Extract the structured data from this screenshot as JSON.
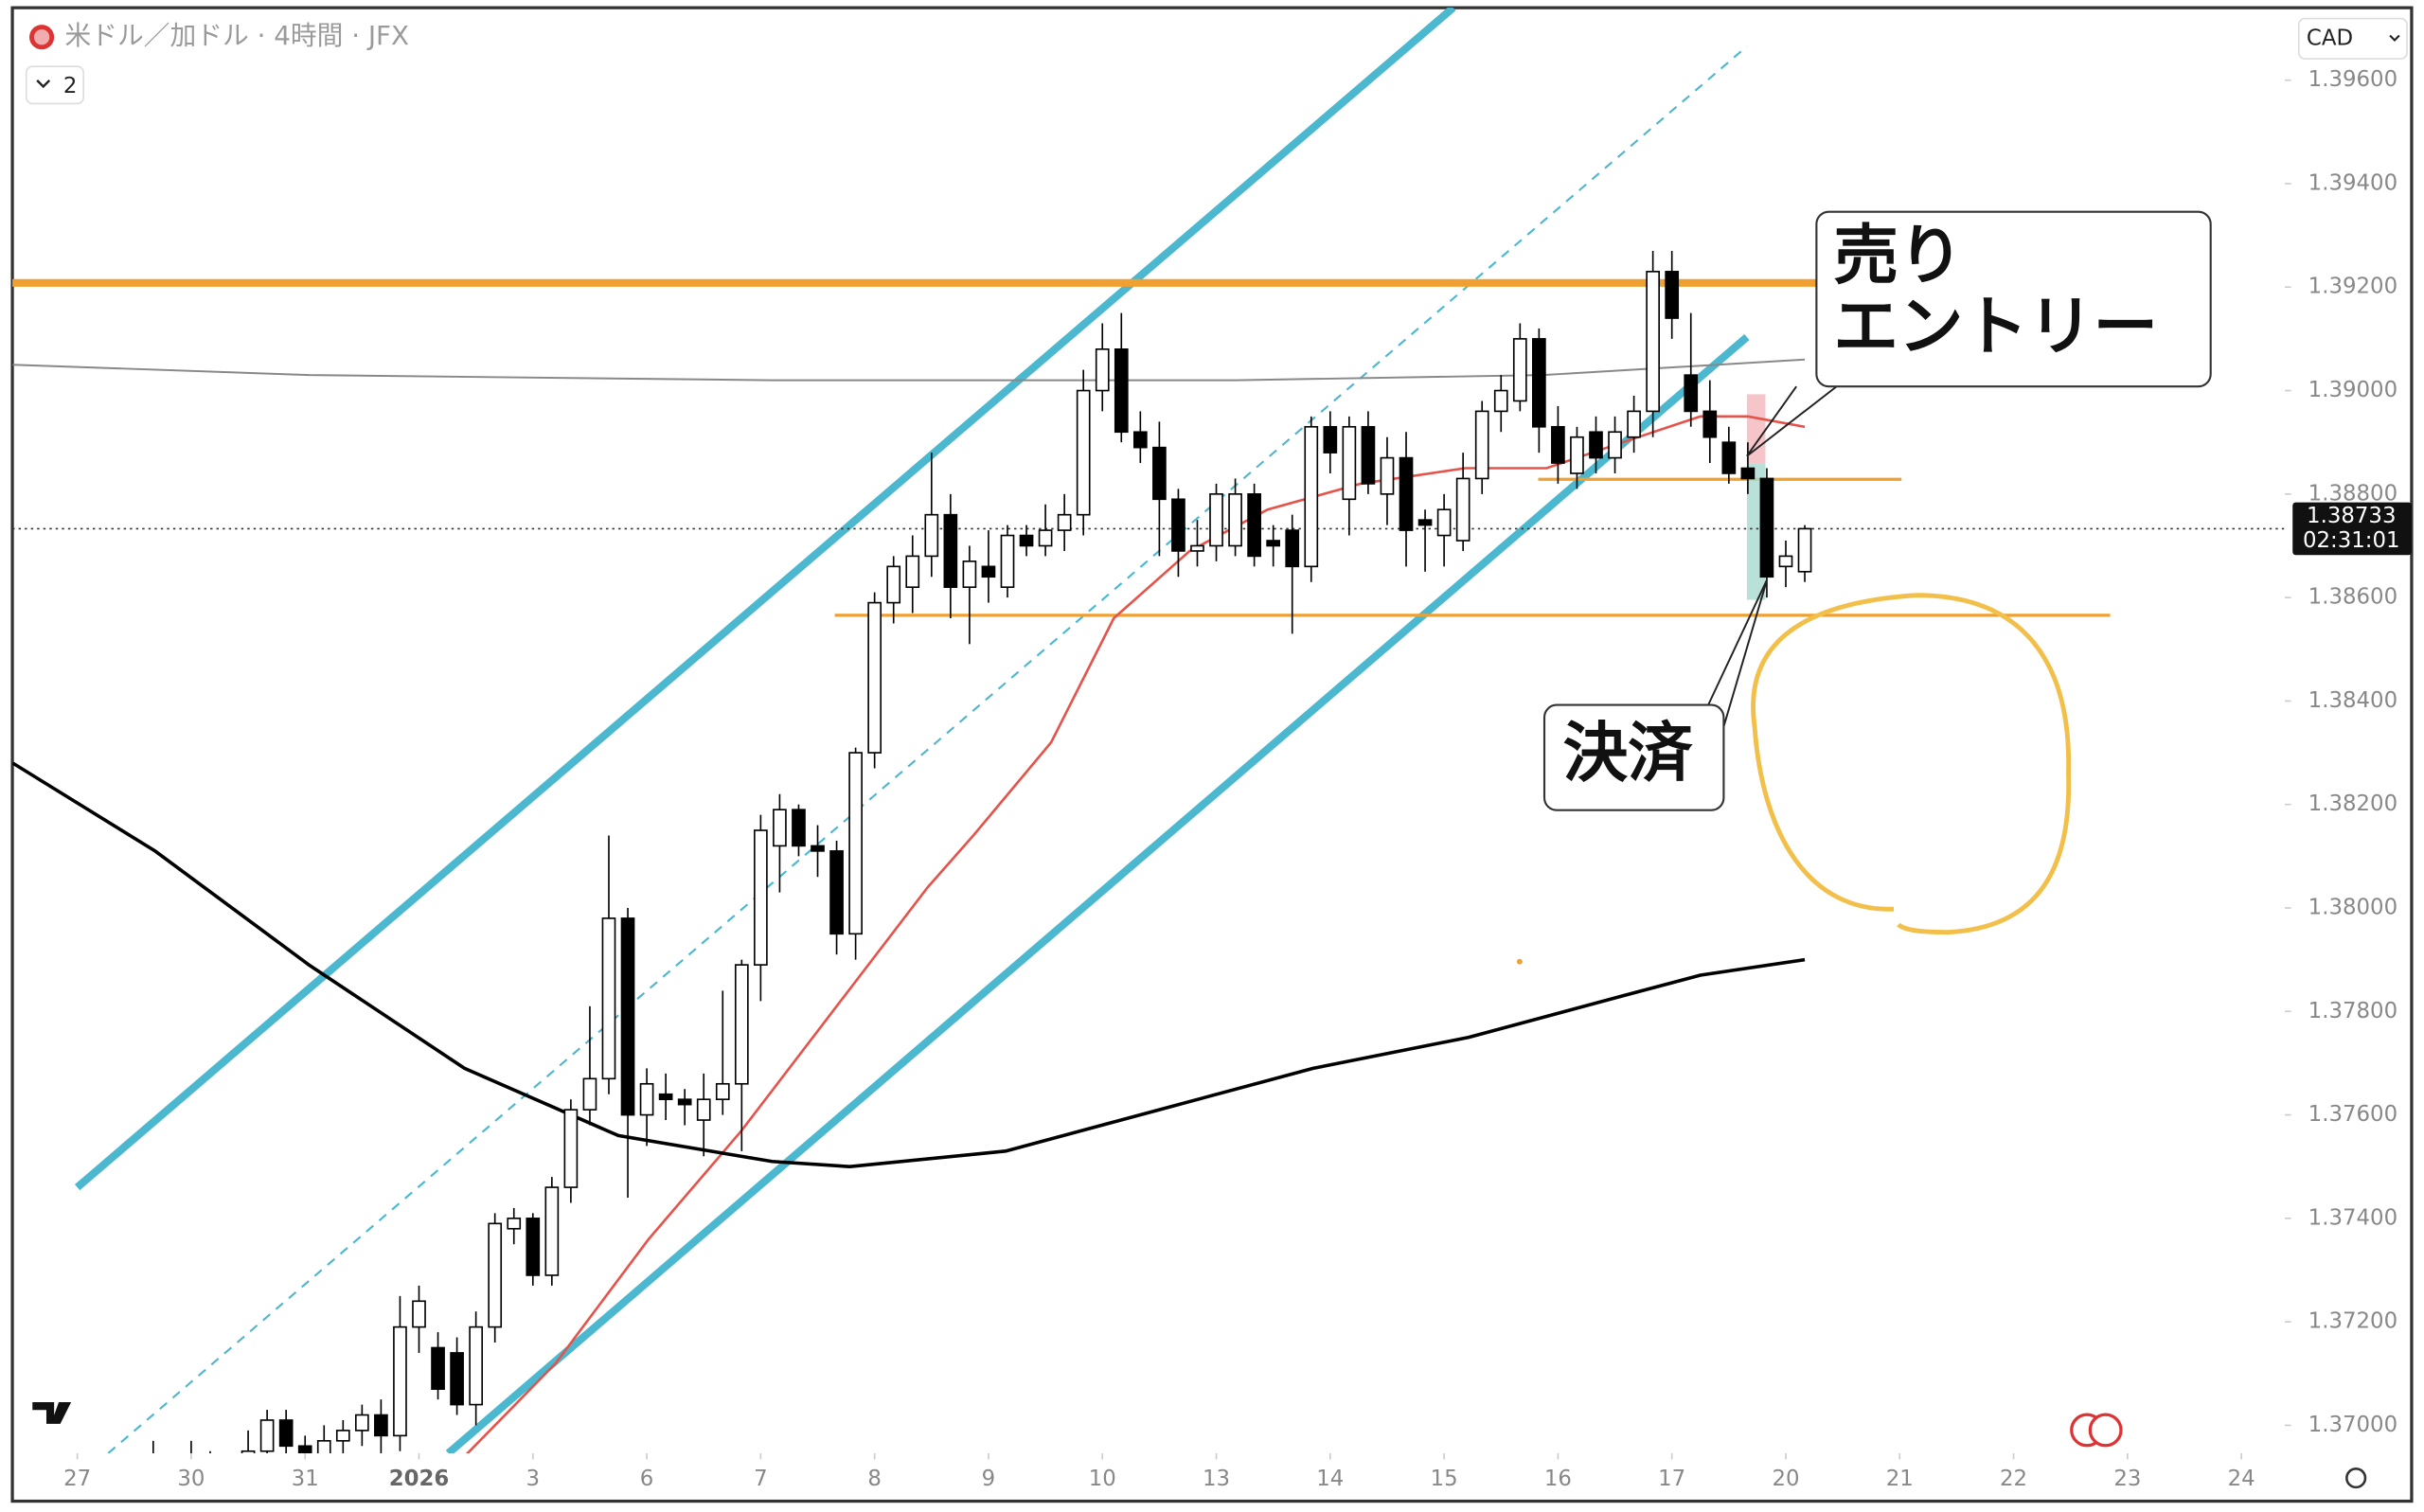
{
  "chart_data": {
    "type": "candlestick",
    "title": "米ドル／加ドル · 4時間 · JFX",
    "indicator_toggle": "2",
    "currency": "CAD",
    "x": [
      4,
      5,
      6,
      7,
      8,
      9,
      10,
      11,
      12,
      13,
      14,
      15,
      16,
      17,
      18,
      19,
      20,
      21,
      22,
      23,
      24,
      25,
      26,
      27,
      28,
      29,
      30,
      31,
      32,
      33,
      34,
      35,
      36,
      37,
      38,
      39,
      40,
      41,
      42,
      43,
      44,
      45,
      46,
      47,
      48,
      49,
      50,
      51,
      52,
      53,
      54,
      55,
      56,
      57,
      58,
      59,
      60,
      61,
      62,
      63,
      64,
      65,
      66,
      67,
      68,
      69,
      70,
      71,
      72,
      73,
      74,
      75,
      76,
      77,
      78,
      79,
      80,
      81,
      82,
      83,
      84,
      85,
      86,
      87,
      88,
      89,
      90,
      91
    ],
    "open": [
      1.3688,
      1.3692,
      1.3689,
      1.3693,
      1.3688,
      1.369,
      1.3695,
      1.3701,
      1.3696,
      1.3694,
      1.3697,
      1.3699,
      1.3702,
      1.3698,
      1.3719,
      1.3715,
      1.3714,
      1.3704,
      1.3719,
      1.3738,
      1.374,
      1.3729,
      1.3746,
      1.3761,
      1.3767,
      1.3798,
      1.376,
      1.3764,
      1.3763,
      1.3759,
      1.3763,
      1.3766,
      1.3789,
      1.3812,
      1.3819,
      1.3812,
      1.3811,
      1.3795,
      1.383,
      1.3859,
      1.3862,
      1.3868,
      1.3876,
      1.3862,
      1.3866,
      1.3862,
      1.3872,
      1.387,
      1.3873,
      1.3876,
      1.39,
      1.3908,
      1.3892,
      1.3889,
      1.3879,
      1.3869,
      1.387,
      1.387,
      1.388,
      1.3871,
      1.3873,
      1.3866,
      1.3893,
      1.3879,
      1.3893,
      1.388,
      1.3887,
      1.3875,
      1.3872,
      1.3871,
      1.3883,
      1.3896,
      1.3898,
      1.391,
      1.3893,
      1.3884,
      1.3892,
      1.3887,
      1.3891,
      1.3896,
      1.3923,
      1.3903,
      1.3896,
      1.389,
      1.3885,
      1.3883,
      1.3866,
      1.3865
    ],
    "high": [
      1.3697,
      1.3694,
      1.3697,
      1.3695,
      1.3694,
      1.3699,
      1.3703,
      1.3703,
      1.3698,
      1.37,
      1.3701,
      1.3704,
      1.3705,
      1.3725,
      1.3727,
      1.3718,
      1.3717,
      1.3722,
      1.3741,
      1.3742,
      1.3741,
      1.3748,
      1.3763,
      1.3781,
      1.3814,
      1.38,
      1.3769,
      1.3768,
      1.3765,
      1.3768,
      1.3784,
      1.379,
      1.3818,
      1.3822,
      1.382,
      1.3816,
      1.3813,
      1.3831,
      1.3861,
      1.3868,
      1.3872,
      1.3888,
      1.388,
      1.387,
      1.3873,
      1.3874,
      1.3874,
      1.3878,
      1.388,
      1.3904,
      1.3913,
      1.3915,
      1.3896,
      1.3894,
      1.3881,
      1.3875,
      1.3882,
      1.3883,
      1.3882,
      1.3874,
      1.3876,
      1.3895,
      1.3896,
      1.3895,
      1.3896,
      1.3891,
      1.3892,
      1.3877,
      1.388,
      1.3888,
      1.3898,
      1.3903,
      1.3913,
      1.3912,
      1.3897,
      1.3893,
      1.3895,
      1.3895,
      1.3899,
      1.3927,
      1.3927,
      1.3915,
      1.3902,
      1.3893,
      1.389,
      1.3885,
      1.3871,
      1.3874
    ],
    "low": [
      1.3684,
      1.3686,
      1.3685,
      1.3686,
      1.3683,
      1.3688,
      1.3693,
      1.3692,
      1.369,
      1.369,
      1.3694,
      1.3696,
      1.3694,
      1.3695,
      1.3714,
      1.3705,
      1.3702,
      1.37,
      1.3716,
      1.3735,
      1.3727,
      1.3727,
      1.3743,
      1.3758,
      1.3764,
      1.3744,
      1.3754,
      1.3759,
      1.3758,
      1.3752,
      1.376,
      1.3753,
      1.3782,
      1.3803,
      1.381,
      1.3806,
      1.3791,
      1.379,
      1.3827,
      1.3855,
      1.3857,
      1.3864,
      1.3856,
      1.3851,
      1.3859,
      1.386,
      1.3868,
      1.3868,
      1.3869,
      1.3872,
      1.3896,
      1.389,
      1.3886,
      1.3868,
      1.3864,
      1.3866,
      1.3867,
      1.3868,
      1.3866,
      1.3866,
      1.3853,
      1.3863,
      1.3884,
      1.3872,
      1.388,
      1.3874,
      1.3866,
      1.3865,
      1.3866,
      1.3869,
      1.388,
      1.3892,
      1.3896,
      1.3888,
      1.3882,
      1.3881,
      1.3884,
      1.3884,
      1.3888,
      1.3891,
      1.391,
      1.3893,
      1.3886,
      1.3882,
      1.388,
      1.386,
      1.3862,
      1.3863
    ],
    "close": [
      1.3692,
      1.3689,
      1.3693,
      1.3688,
      1.369,
      1.3695,
      1.3701,
      1.3696,
      1.3694,
      1.3697,
      1.3699,
      1.3702,
      1.3698,
      1.3719,
      1.3724,
      1.3707,
      1.3704,
      1.3719,
      1.3739,
      1.374,
      1.3729,
      1.3746,
      1.3761,
      1.3767,
      1.3798,
      1.376,
      1.3766,
      1.3763,
      1.3762,
      1.3763,
      1.3766,
      1.3789,
      1.3815,
      1.3819,
      1.3812,
      1.3811,
      1.3795,
      1.383,
      1.3859,
      1.3866,
      1.3868,
      1.3876,
      1.3862,
      1.3867,
      1.3864,
      1.3872,
      1.387,
      1.3873,
      1.3876,
      1.39,
      1.3908,
      1.3892,
      1.3889,
      1.3879,
      1.3869,
      1.387,
      1.388,
      1.388,
      1.3868,
      1.387,
      1.3866,
      1.3893,
      1.3888,
      1.3893,
      1.3882,
      1.3887,
      1.3873,
      1.3874,
      1.3877,
      1.3883,
      1.3896,
      1.39,
      1.391,
      1.3893,
      1.3886,
      1.3891,
      1.3887,
      1.3892,
      1.3896,
      1.3923,
      1.3914,
      1.3896,
      1.3891,
      1.3884,
      1.3883,
      1.3864,
      1.3868,
      1.38733
    ],
    "up_color": "#ffffff",
    "down_color": "#000000",
    "lines": [
      {
        "color": "#e5534b",
        "x": [
          20.4,
          25.2,
          30.1,
          35,
          40,
          44.8,
          47.2,
          51.3,
          54.6,
          58.6,
          62.7,
          67.6,
          73.1,
          77.4,
          81.4,
          85.5,
          88,
          91
        ],
        "values": [
          1.3694,
          1.3712,
          1.3736,
          1.3757,
          1.3781,
          1.3804,
          1.3814,
          1.3832,
          1.3856,
          1.3869,
          1.3877,
          1.3882,
          1.3885,
          1.3885,
          1.389,
          1.3895,
          1.3895,
          1.3893
        ]
      },
      {
        "color": "#000000",
        "x": [
          -3.4,
          4.1,
          12.2,
          20.4,
          28.5,
          36.6,
          40.7,
          48.9,
          57,
          65.1,
          73.3,
          81.4,
          85.5,
          91
        ],
        "values": [
          1.3828,
          1.3811,
          1.3789,
          1.3769,
          1.3756,
          1.3751,
          1.375,
          1.3753,
          1.3761,
          1.3769,
          1.3775,
          1.3783,
          1.3787,
          1.379
        ]
      },
      {
        "color": "#888888",
        "x": [
          -3.4,
          12.2,
          36.6,
          61,
          77.2,
          91
        ],
        "values": [
          1.3905,
          1.3903,
          1.3902,
          1.3902,
          1.3903,
          1.3906
        ]
      }
    ],
    "xlim": [
      -3.42,
      116.29
    ],
    "xticks": [
      {
        "value": 0,
        "label": "27"
      },
      {
        "value": 6,
        "label": "30"
      },
      {
        "value": 12,
        "label": "31"
      },
      {
        "value": 18,
        "label": "2026"
      },
      {
        "value": 24,
        "label": "3"
      },
      {
        "value": 30,
        "label": "6"
      },
      {
        "value": 36,
        "label": "7"
      },
      {
        "value": 42,
        "label": "8"
      },
      {
        "value": 48,
        "label": "9"
      },
      {
        "value": 54,
        "label": "10"
      },
      {
        "value": 60,
        "label": "13"
      },
      {
        "value": 66,
        "label": "14"
      },
      {
        "value": 72,
        "label": "15"
      },
      {
        "value": 78,
        "label": "16"
      },
      {
        "value": 84,
        "label": "17"
      },
      {
        "value": 90,
        "label": "20"
      },
      {
        "value": 96,
        "label": "21"
      },
      {
        "value": 102,
        "label": "22"
      },
      {
        "value": 108,
        "label": "23"
      },
      {
        "value": 114,
        "label": "24"
      }
    ],
    "ylim": [
      1.36946,
      1.3974
    ],
    "yticks": [
      {
        "value": 1.37,
        "label": "1.37000"
      },
      {
        "value": 1.372,
        "label": "1.37200"
      },
      {
        "value": 1.374,
        "label": "1.37400"
      },
      {
        "value": 1.376,
        "label": "1.37600"
      },
      {
        "value": 1.378,
        "label": "1.37800"
      },
      {
        "value": 1.38,
        "label": "1.38000"
      },
      {
        "value": 1.382,
        "label": "1.38200"
      },
      {
        "value": 1.384,
        "label": "1.38400"
      },
      {
        "value": 1.386,
        "label": "1.38600"
      },
      {
        "value": 1.388,
        "label": "1.38800"
      },
      {
        "value": 1.39,
        "label": "1.39000"
      },
      {
        "value": 1.392,
        "label": "1.39200"
      },
      {
        "value": 1.394,
        "label": "1.39400"
      },
      {
        "value": 1.396,
        "label": "1.39600"
      }
    ],
    "last_price": 1.38733,
    "countdown": "02:31:01",
    "annotations": [
      [
        "売り",
        "エントリー"
      ],
      [
        "決済"
      ]
    ]
  }
}
